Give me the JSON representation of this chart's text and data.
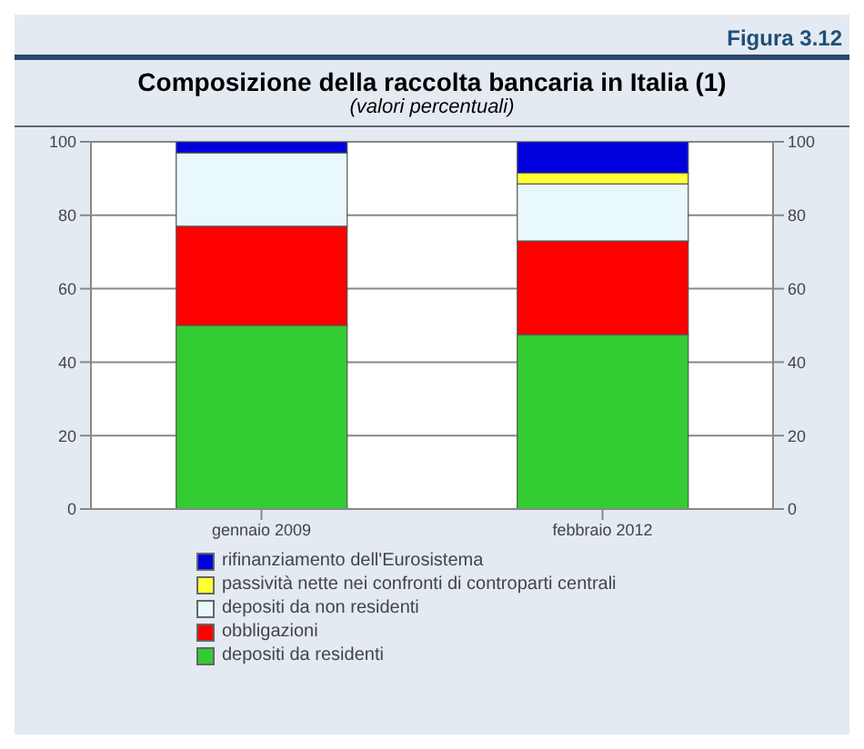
{
  "chart_data": {
    "type": "bar",
    "title": "Composizione della raccolta bancaria in Italia (1)",
    "subtitle": "(valori percentuali)",
    "annotations": [
      "Figura 3.12"
    ],
    "categories": [
      "gennaio 2009",
      "febbraio 2012"
    ],
    "stacked": true,
    "series": [
      {
        "name": "depositi da residenti",
        "color": "#33cc33",
        "values": [
          50,
          47.5
        ]
      },
      {
        "name": "obbligazioni",
        "color": "#ff0000",
        "values": [
          27,
          25.5
        ]
      },
      {
        "name": "depositi da non residenti",
        "color": "#e8f8fb",
        "values": [
          20,
          15.5
        ]
      },
      {
        "name": "passività nette nei confronti di controparti centrali",
        "color": "#ffff33",
        "values": [
          0,
          3
        ]
      },
      {
        "name": "rifinanziamento dell'Eurosistema",
        "color": "#0000dd",
        "values": [
          3,
          8.5
        ]
      }
    ],
    "ylim": [
      0,
      100
    ],
    "yticks": [
      0,
      20,
      40,
      60,
      80,
      100
    ],
    "y2lim": [
      0,
      100
    ],
    "y2ticks": [
      0,
      20,
      40,
      60,
      80,
      100
    ],
    "grid": "y",
    "legend": "bottom"
  }
}
